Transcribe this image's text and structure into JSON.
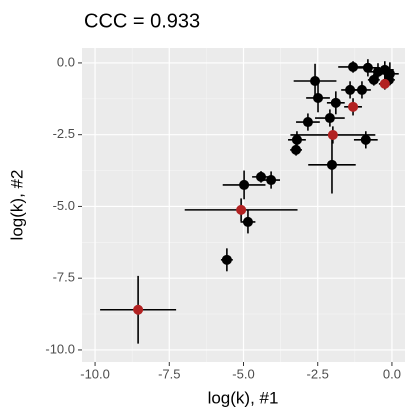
{
  "chart_data": {
    "type": "scatter",
    "title": "CCC = 0.933",
    "x_label": "log(k), #1",
    "y_label": "log(k), #2",
    "xlim": [
      -10.44,
      0.44
    ],
    "ylim": [
      -10.42,
      0.52
    ],
    "xticks": [
      {
        "value": -10,
        "label": "-10.0"
      },
      {
        "value": -7.5,
        "label": "-7.5"
      },
      {
        "value": -5,
        "label": "-5.0"
      },
      {
        "value": -2.5,
        "label": "-2.5"
      },
      {
        "value": 0,
        "label": "0.0"
      }
    ],
    "yticks": [
      {
        "value": 0,
        "label": "0.0"
      },
      {
        "value": -2.5,
        "label": "-2.5"
      },
      {
        "value": -5,
        "label": "-5.0"
      },
      {
        "value": -7.5,
        "label": "-7.5"
      },
      {
        "value": -10,
        "label": "-10.0"
      }
    ],
    "grid": true,
    "series": [
      {
        "color": "#000000",
        "x": [
          -5.56,
          -4.85,
          -4.98,
          -4.41,
          -4.07,
          -2.02,
          -3.23,
          -3.2,
          -0.88,
          -2.83,
          -2.09,
          -2.49,
          -2.59,
          -1.89,
          -1.41,
          -1.01,
          -1.31,
          -0.81,
          -0.47,
          -0.24,
          -0.07,
          -0.61,
          -0.1
        ],
        "y": [
          -6.86,
          -5.54,
          -4.25,
          -3.97,
          -4.08,
          -3.55,
          -3.03,
          -2.68,
          -2.68,
          -2.06,
          -1.92,
          -1.22,
          -0.63,
          -1.39,
          -0.94,
          -0.94,
          -0.14,
          -0.17,
          -0.31,
          -0.24,
          -0.38,
          -0.59,
          -0.59
        ],
        "xerr": [
          0.2,
          0.25,
          0.72,
          0.3,
          0.3,
          0.8,
          0.2,
          0.3,
          0.4,
          0.4,
          0.5,
          0.4,
          0.72,
          0.3,
          0.3,
          0.3,
          0.5,
          0.4,
          0.3,
          0.3,
          0.3,
          0.2,
          0.2
        ],
        "yerr": [
          0.4,
          0.4,
          0.5,
          0.2,
          0.3,
          1.0,
          0.2,
          0.3,
          0.3,
          0.3,
          0.3,
          0.5,
          0.6,
          0.4,
          0.3,
          0.3,
          0.2,
          0.3,
          0.3,
          0.3,
          0.4,
          0.2,
          0.2
        ]
      },
      {
        "color": "#b22222",
        "x": [
          -8.55,
          -5.08,
          -1.99,
          -1.31,
          -0.24
        ],
        "y": [
          -8.6,
          -5.12,
          -2.51,
          -1.53,
          -0.73
        ],
        "xerr": [
          1.28,
          1.9,
          1.43,
          0.3,
          0.2
        ],
        "yerr": [
          1.18,
          0.4,
          0.3,
          0.3,
          0.2
        ]
      }
    ]
  }
}
